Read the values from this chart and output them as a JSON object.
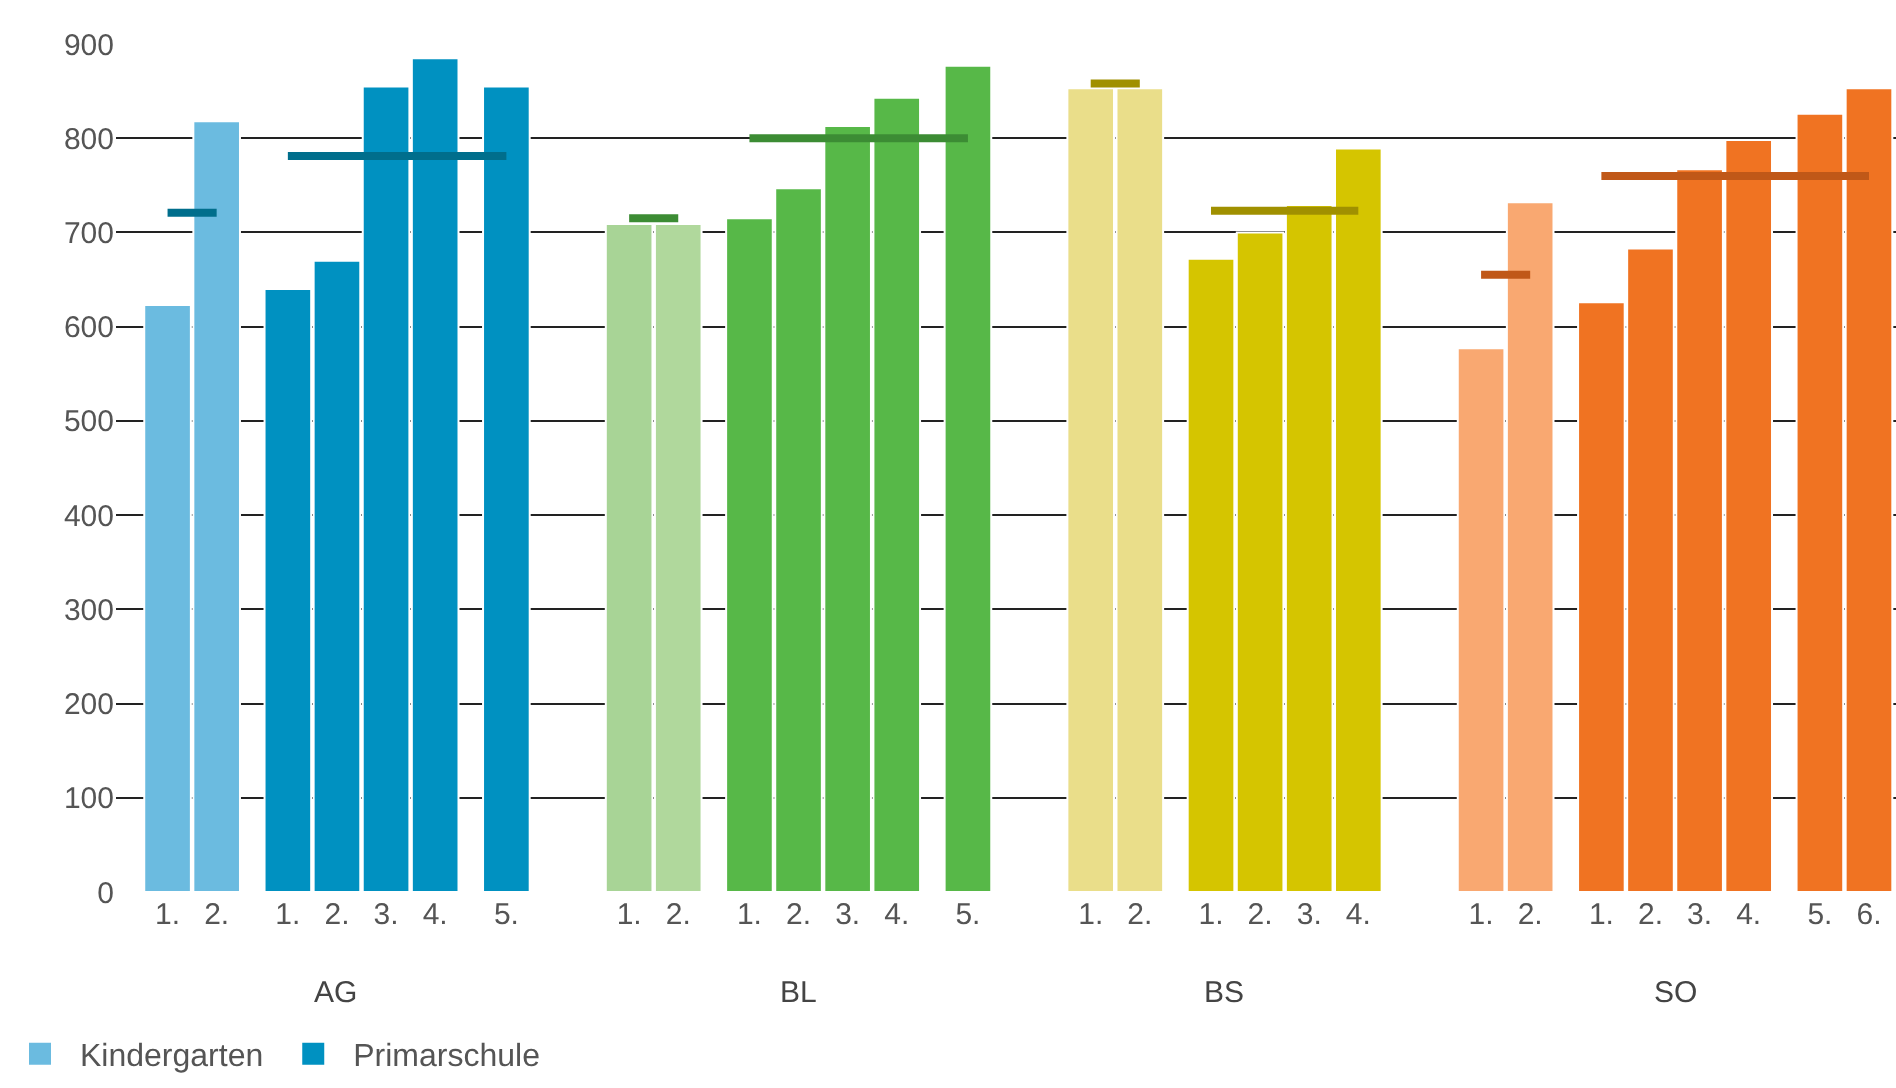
{
  "chart_data": {
    "type": "bar",
    "categories": [
      "1.",
      "2.",
      null,
      "1.",
      "2.",
      "3.",
      "4.",
      null,
      "5.",
      null,
      null,
      "1.",
      "2.",
      null,
      "1.",
      "2.",
      "3.",
      "4.",
      null,
      "5.",
      null,
      null,
      "1.",
      "2.",
      null,
      "1.",
      "2.",
      "3.",
      "4.",
      null,
      null,
      "1.",
      "2.",
      null,
      "1.",
      "2.",
      "3.",
      "4.",
      null,
      "5.",
      "6."
    ],
    "annotations": [
      "AG",
      "BL",
      "BS",
      "SO"
    ],
    "ylim": [
      0,
      900
    ],
    "yticks": [
      0,
      100,
      200,
      300,
      400,
      500,
      600,
      700,
      800,
      900
    ],
    "grid": "y",
    "legend": "bottom left",
    "series": [
      {
        "name": "Kindergarten",
        "values": [
          623,
          818,
          null,
          null,
          null,
          null,
          null,
          null,
          null,
          null,
          null,
          709,
          null,
          null,
          null,
          null,
          null,
          null,
          null,
          null,
          null,
          null,
          null,
          null,
          null,
          null,
          null,
          null,
          null,
          null,
          null,
          577,
          732,
          null,
          null,
          null,
          null,
          null,
          null,
          null,
          null
        ],
        "colors": [
          "#6bbbe0",
          "#6bbbe0",
          null,
          null,
          null,
          null,
          null,
          null,
          null,
          null,
          null,
          "#a8d496",
          null,
          null,
          null,
          null,
          null,
          null,
          null,
          null,
          null,
          null,
          null,
          null,
          null,
          null,
          null,
          null,
          null,
          null,
          null,
          "#f9a871",
          "#f9a871",
          null,
          null,
          null,
          null,
          null,
          null,
          null,
          null
        ]
      },
      {
        "values": [
          null,
          null,
          null,
          null,
          null,
          null,
          null,
          null,
          null,
          null,
          null,
          null,
          709,
          null,
          null,
          null,
          null,
          null,
          null,
          null,
          null,
          null,
          853,
          853,
          null,
          null,
          null,
          null,
          null,
          null,
          null,
          null,
          null,
          null,
          null,
          null,
          null,
          null,
          null,
          null,
          null
        ],
        "colors": [
          null,
          null,
          null,
          null,
          null,
          null,
          null,
          null,
          null,
          null,
          null,
          null,
          "#b0d89c",
          null,
          null,
          null,
          null,
          null,
          null,
          null,
          null,
          null,
          "#eade8a",
          "#eade8a",
          null,
          null,
          null,
          null,
          null,
          null,
          null,
          null,
          null,
          null,
          null,
          null,
          null,
          null,
          null,
          null,
          null
        ]
      },
      {
        "name": "Primarschule",
        "values": [
          null,
          null,
          null,
          640,
          670,
          855,
          885,
          null,
          855,
          null,
          null,
          null,
          null,
          null,
          715,
          747,
          813,
          843,
          null,
          877,
          null,
          null,
          null,
          null,
          null,
          672,
          700,
          729,
          789,
          null,
          null,
          null,
          null,
          null,
          626,
          683,
          767,
          798,
          null,
          826,
          853
        ],
        "colors": [
          null,
          null,
          null,
          "#0091c1",
          "#0091c1",
          "#0091c1",
          "#0091c1",
          null,
          "#0091c1",
          null,
          null,
          null,
          null,
          null,
          "#57b848",
          "#57b848",
          "#57b848",
          "#57b848",
          null,
          "#57b848",
          null,
          null,
          null,
          null,
          null,
          "#d5c500",
          "#d5c500",
          "#d5c500",
          "#d5c500",
          null,
          null,
          null,
          null,
          null,
          "#f07322",
          "#f07322",
          "#f07322",
          "#f07322",
          null,
          "#f07322",
          "#f07322"
        ]
      },
      {
        "type": "line",
        "color": "#006e8c",
        "values": [
          721,
          721,
          null,
          null,
          null,
          null,
          null,
          null,
          null,
          null,
          null,
          null,
          null,
          null,
          null,
          null,
          null,
          null,
          null,
          null,
          null,
          null,
          null,
          null,
          null,
          null,
          null,
          null,
          null,
          null,
          null,
          null,
          null,
          null,
          null,
          null,
          null,
          null,
          null,
          null,
          null
        ]
      },
      {
        "type": "line",
        "color": "#006e8c",
        "values": [
          null,
          null,
          null,
          781,
          781,
          781,
          781,
          null,
          781,
          null,
          null,
          null,
          null,
          null,
          null,
          null,
          null,
          null,
          null,
          null,
          null,
          null,
          null,
          null,
          null,
          null,
          null,
          null,
          null,
          null,
          null,
          null,
          null,
          null,
          null,
          null,
          null,
          null,
          null,
          null,
          null
        ]
      },
      {
        "type": "line",
        "color": "#3c8c34",
        "values": [
          null,
          null,
          null,
          null,
          null,
          null,
          null,
          null,
          null,
          null,
          null,
          715,
          715,
          null,
          null,
          null,
          null,
          null,
          null,
          null,
          null,
          null,
          null,
          null,
          null,
          null,
          null,
          null,
          null,
          null,
          null,
          null,
          null,
          null,
          null,
          null,
          null,
          null,
          null,
          null,
          null
        ]
      },
      {
        "type": "line",
        "color": "#3c8c34",
        "values": [
          null,
          null,
          null,
          null,
          null,
          null,
          null,
          null,
          null,
          null,
          null,
          null,
          null,
          null,
          800,
          800,
          800,
          800,
          null,
          800,
          null,
          null,
          null,
          null,
          null,
          null,
          null,
          null,
          null,
          null,
          null,
          null,
          null,
          null,
          null,
          null,
          null,
          null,
          null,
          null,
          null
        ]
      },
      {
        "type": "line",
        "color": "#a09000",
        "values": [
          null,
          null,
          null,
          null,
          null,
          null,
          null,
          null,
          null,
          null,
          null,
          null,
          null,
          null,
          null,
          null,
          null,
          null,
          null,
          null,
          null,
          null,
          858,
          858,
          null,
          null,
          null,
          null,
          null,
          null,
          null,
          null,
          null,
          null,
          null,
          null,
          null,
          null,
          null,
          null,
          null
        ]
      },
      {
        "type": "line",
        "color": "#a09000",
        "values": [
          null,
          null,
          null,
          null,
          null,
          null,
          null,
          null,
          null,
          null,
          null,
          null,
          null,
          null,
          null,
          null,
          null,
          null,
          null,
          null,
          null,
          null,
          null,
          null,
          null,
          723,
          723,
          723,
          723,
          null,
          null,
          null,
          null,
          null,
          null,
          null,
          null,
          null,
          null,
          null,
          null
        ]
      },
      {
        "type": "line",
        "color": "#c05818",
        "values": [
          null,
          null,
          null,
          null,
          null,
          null,
          null,
          null,
          null,
          null,
          null,
          null,
          null,
          null,
          null,
          null,
          null,
          null,
          null,
          null,
          null,
          null,
          null,
          null,
          null,
          null,
          null,
          null,
          null,
          null,
          null,
          655,
          655,
          null,
          null,
          null,
          null,
          null,
          null,
          null,
          null
        ]
      },
      {
        "type": "line",
        "color": "#c05818",
        "values": [
          null,
          null,
          null,
          null,
          null,
          null,
          null,
          null,
          null,
          null,
          null,
          null,
          null,
          null,
          null,
          null,
          null,
          null,
          null,
          null,
          null,
          null,
          null,
          null,
          null,
          null,
          null,
          null,
          null,
          null,
          null,
          null,
          null,
          null,
          760,
          760,
          760,
          760,
          null,
          760,
          760
        ]
      }
    ]
  }
}
